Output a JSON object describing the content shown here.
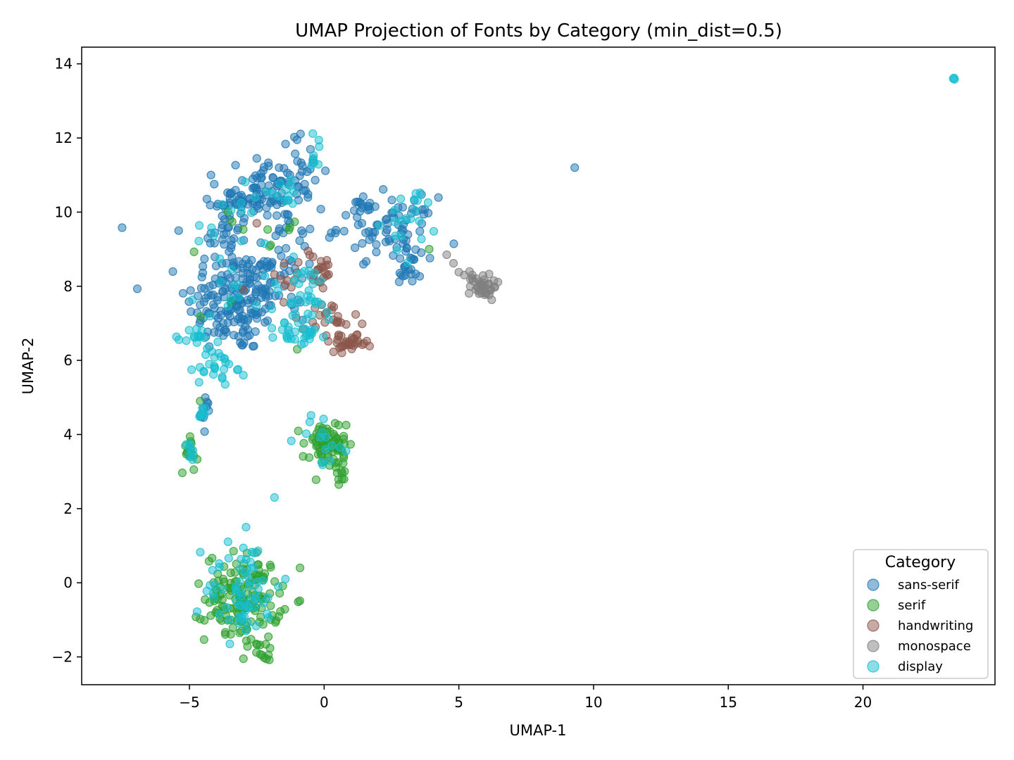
{
  "chart_data": {
    "type": "scatter",
    "title": "UMAP Projection of Fonts by Category (min_dist=0.5)",
    "xlabel": "UMAP-1",
    "ylabel": "UMAP-2",
    "xlim": [
      -9.0,
      24.9
    ],
    "ylim": [
      -2.75,
      14.45
    ],
    "xticks": [
      -5,
      0,
      5,
      10,
      15,
      20
    ],
    "yticks": [
      -2,
      0,
      2,
      4,
      6,
      8,
      10,
      12,
      14
    ],
    "xtick_labels": [
      "−5",
      "0",
      "5",
      "10",
      "15",
      "20"
    ],
    "ytick_labels": [
      "−2",
      "0",
      "2",
      "4",
      "6",
      "8",
      "10",
      "12",
      "14"
    ],
    "grid": false,
    "legend": {
      "title": "Category",
      "placement": "lower-right"
    },
    "series": [
      {
        "name": "sans-serif",
        "color": "#1f77b4",
        "clusters": [
          {
            "cx": -3.3,
            "cy": 7.6,
            "sx": 0.9,
            "sy": 0.7,
            "n": 170
          },
          {
            "cx": -2.6,
            "cy": 10.4,
            "sx": 0.6,
            "sy": 0.35,
            "n": 70
          },
          {
            "cx": -3.7,
            "cy": 9.4,
            "sx": 0.3,
            "sy": 0.8,
            "n": 40
          },
          {
            "cx": -1.0,
            "cy": 11.1,
            "sx": 0.5,
            "sy": 0.5,
            "n": 40
          },
          {
            "cx": -1.3,
            "cy": 9.5,
            "sx": 0.5,
            "sy": 0.7,
            "n": 30
          },
          {
            "cx": -2.0,
            "cy": 8.0,
            "sx": 0.6,
            "sy": 0.5,
            "n": 30
          },
          {
            "cx": 2.3,
            "cy": 9.6,
            "sx": 0.9,
            "sy": 0.4,
            "n": 70
          },
          {
            "cx": 3.2,
            "cy": 8.6,
            "sx": 0.4,
            "sy": 0.3,
            "n": 25
          },
          {
            "cx": 1.3,
            "cy": 10.2,
            "sx": 0.2,
            "sy": 0.2,
            "n": 10
          },
          {
            "cx": -4.4,
            "cy": 4.5,
            "sx": 0.15,
            "sy": 0.25,
            "n": 10
          }
        ],
        "points": [
          [
            -7.5,
            9.58
          ],
          [
            -5.4,
            9.5
          ],
          [
            9.3,
            11.2
          ],
          [
            -4.2,
            11.0
          ],
          [
            -2.5,
            11.45
          ]
        ]
      },
      {
        "name": "serif",
        "color": "#2ca02c",
        "clusters": [
          {
            "cx": -3.0,
            "cy": -0.4,
            "sx": 0.7,
            "sy": 0.6,
            "n": 150
          },
          {
            "cx": -2.2,
            "cy": -1.85,
            "sx": 0.15,
            "sy": 0.12,
            "n": 12
          },
          {
            "cx": 0.0,
            "cy": 3.7,
            "sx": 0.4,
            "sy": 0.35,
            "n": 60
          },
          {
            "cx": 0.6,
            "cy": 3.2,
            "sx": 0.2,
            "sy": 0.25,
            "n": 20
          },
          {
            "cx": -5.0,
            "cy": 3.6,
            "sx": 0.15,
            "sy": 0.3,
            "n": 15
          },
          {
            "cx": -2.5,
            "cy": 9.5,
            "sx": 1.0,
            "sy": 1.2,
            "n": 12
          }
        ],
        "points": [
          [
            -0.3,
            2.78
          ],
          [
            -4.6,
            4.9
          ],
          [
            -1.0,
            6.3
          ],
          [
            3.9,
            9.0
          ]
        ]
      },
      {
        "name": "handwriting",
        "color": "#8c564b",
        "clusters": [
          {
            "cx": 0.9,
            "cy": 6.45,
            "sx": 0.35,
            "sy": 0.1,
            "n": 30
          },
          {
            "cx": 0.3,
            "cy": 7.0,
            "sx": 0.5,
            "sy": 0.35,
            "n": 25
          },
          {
            "cx": -0.2,
            "cy": 8.4,
            "sx": 0.3,
            "sy": 0.25,
            "n": 22
          },
          {
            "cx": -1.5,
            "cy": 8.2,
            "sx": 0.5,
            "sy": 0.4,
            "n": 10
          }
        ],
        "points": [
          [
            -2.5,
            9.7
          ],
          [
            -0.6,
            8.95
          ],
          [
            -3.0,
            7.9
          ]
        ]
      },
      {
        "name": "monospace",
        "color": "#7f7f7f",
        "clusters": [
          {
            "cx": 5.9,
            "cy": 8.0,
            "sx": 0.25,
            "sy": 0.18,
            "n": 35
          }
        ],
        "points": [
          [
            4.55,
            8.85
          ],
          [
            4.8,
            8.62
          ],
          [
            5.0,
            8.38
          ],
          [
            5.2,
            8.3
          ],
          [
            5.4,
            8.4
          ],
          [
            5.5,
            8.3
          ],
          [
            5.75,
            7.8
          ],
          [
            6.3,
            8.15
          ],
          [
            6.1,
            8.05
          ]
        ]
      },
      {
        "name": "display",
        "color": "#17becf",
        "clusters": [
          {
            "cx": -3.0,
            "cy": -0.1,
            "sx": 0.7,
            "sy": 0.7,
            "n": 65
          },
          {
            "cx": -4.0,
            "cy": 5.8,
            "sx": 0.35,
            "sy": 0.25,
            "n": 25
          },
          {
            "cx": -4.7,
            "cy": 6.6,
            "sx": 0.25,
            "sy": 0.15,
            "n": 15
          },
          {
            "cx": -1.0,
            "cy": 6.7,
            "sx": 0.4,
            "sy": 0.15,
            "n": 25
          },
          {
            "cx": -0.8,
            "cy": 7.6,
            "sx": 0.7,
            "sy": 0.6,
            "n": 40
          },
          {
            "cx": -0.3,
            "cy": 11.6,
            "sx": 0.2,
            "sy": 0.25,
            "n": 8
          },
          {
            "cx": 0.0,
            "cy": 3.9,
            "sx": 0.5,
            "sy": 0.4,
            "n": 15
          },
          {
            "cx": -4.5,
            "cy": 4.6,
            "sx": 0.1,
            "sy": 0.1,
            "n": 8
          },
          {
            "cx": -5.0,
            "cy": 3.5,
            "sx": 0.1,
            "sy": 0.15,
            "n": 8
          },
          {
            "cx": 3.4,
            "cy": 9.7,
            "sx": 0.5,
            "sy": 0.5,
            "n": 20
          },
          {
            "cx": -3.5,
            "cy": 8.8,
            "sx": 0.8,
            "sy": 1.2,
            "n": 25
          },
          {
            "cx": -1.5,
            "cy": 10.7,
            "sx": 0.4,
            "sy": 0.3,
            "n": 12
          }
        ],
        "points": [
          [
            23.35,
            13.6
          ],
          [
            23.4,
            13.58
          ],
          [
            23.38,
            13.62
          ],
          [
            -2.6,
            0.8
          ],
          [
            -2.9,
            1.5
          ],
          [
            -3.0,
            5.6
          ]
        ]
      }
    ]
  }
}
